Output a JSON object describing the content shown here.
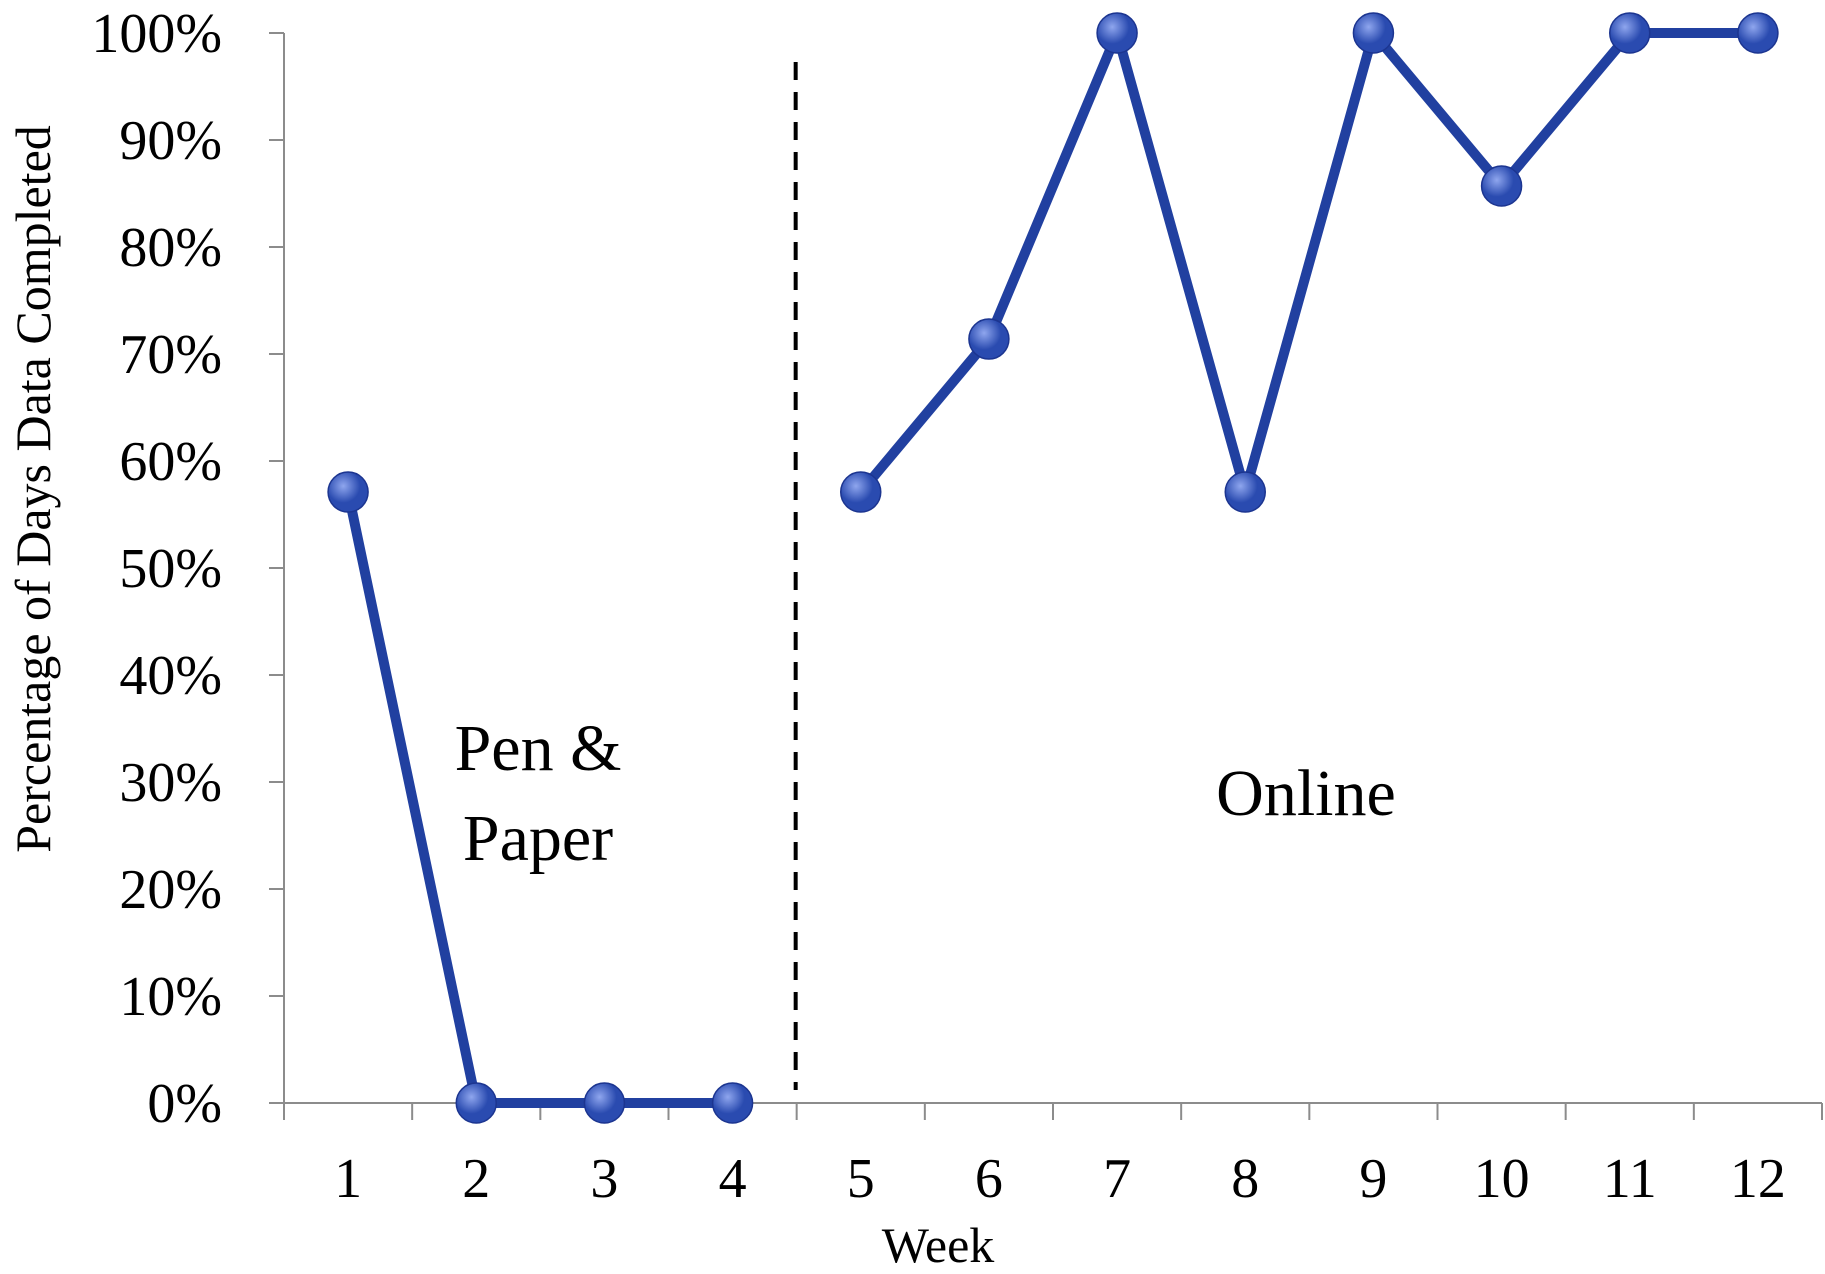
{
  "chart_data": {
    "type": "line",
    "title": "",
    "xlabel": "Week",
    "ylabel": "Percentage of Days Data Completed",
    "categories": [
      "1",
      "2",
      "3",
      "4",
      "5",
      "6",
      "7",
      "8",
      "9",
      "10",
      "11",
      "12"
    ],
    "series": [
      {
        "segments": [
          {
            "x": [
              "1",
              "2",
              "3",
              "4"
            ],
            "values": [
              0.571,
              0,
              0,
              0
            ]
          },
          {
            "x": [
              "5",
              "6",
              "7",
              "8",
              "9",
              "10",
              "11",
              "12"
            ],
            "values": [
              0.571,
              0.714,
              1.0,
              0.571,
              1.0,
              0.857,
              1.0,
              1.0
            ]
          }
        ]
      }
    ],
    "ylim": [
      0,
      1
    ],
    "yticks": [
      "0%",
      "10%",
      "20%",
      "30%",
      "40%",
      "50%",
      "60%",
      "70%",
      "80%",
      "90%",
      "100%"
    ],
    "grid": false,
    "divider_after_category": "4",
    "annotations": [
      {
        "lines": [
          "Pen &",
          "Paper"
        ],
        "region": "weeks 1-4"
      },
      {
        "lines": [
          "Online"
        ],
        "region": "weeks 5-12"
      }
    ],
    "colors": {
      "line": "#2140A0",
      "marker": "#2A4BB0",
      "marker_highlight": "#8FA6EE",
      "axis": "#8C8C8C",
      "divider": "#000000"
    }
  }
}
